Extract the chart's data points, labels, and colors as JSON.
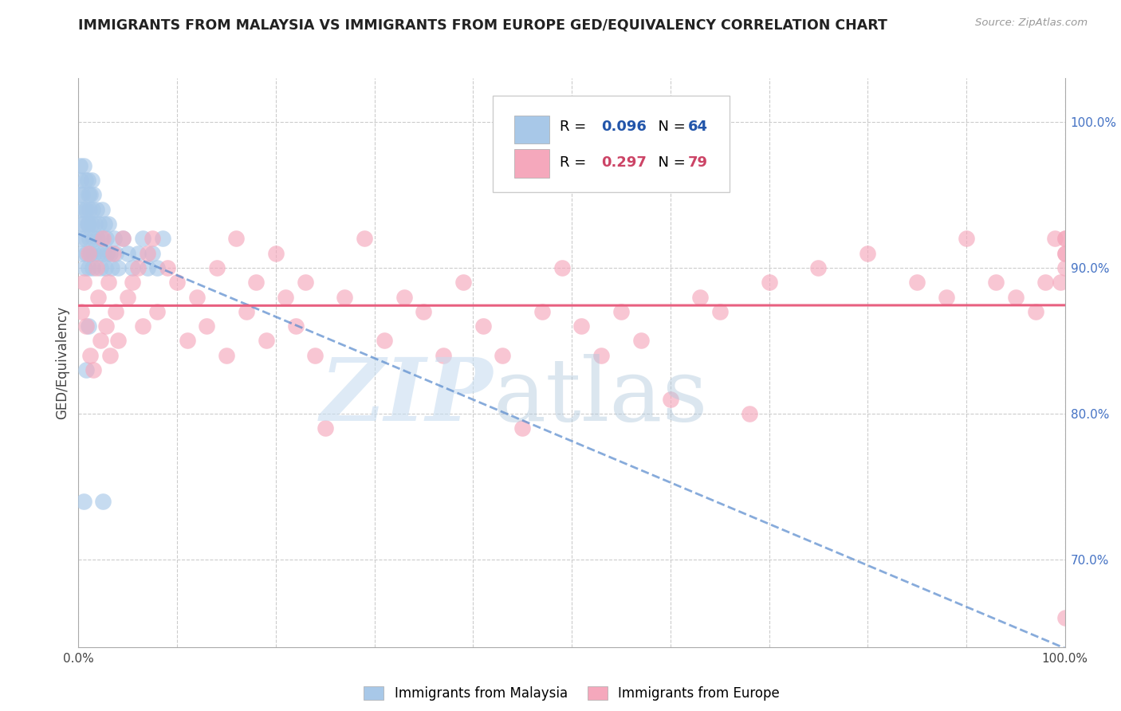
{
  "title": "IMMIGRANTS FROM MALAYSIA VS IMMIGRANTS FROM EUROPE GED/EQUIVALENCY CORRELATION CHART",
  "source": "Source: ZipAtlas.com",
  "ylabel": "GED/Equivalency",
  "xlim": [
    0,
    100
  ],
  "ylim": [
    64,
    103
  ],
  "x_tick_pos": [
    0,
    10,
    20,
    30,
    40,
    50,
    60,
    70,
    80,
    90,
    100
  ],
  "x_tick_labels": [
    "0.0%",
    "",
    "",
    "",
    "",
    "",
    "",
    "",
    "",
    "",
    "100.0%"
  ],
  "y_ticks_right": [
    70,
    80,
    90,
    100
  ],
  "y_tick_labels_right": [
    "70.0%",
    "80.0%",
    "90.0%",
    "100.0%"
  ],
  "malaysia_color": "#a8c8e8",
  "europe_color": "#f5a8bc",
  "malaysia_line_color": "#5588cc",
  "europe_line_color": "#e86080",
  "malaysia_R": 0.096,
  "malaysia_N": 64,
  "europe_R": 0.297,
  "europe_N": 79,
  "legend_R_color": "#2255aa",
  "legend_N_color": "#2255aa",
  "legend_R2_color": "#cc4466",
  "legend_N2_color": "#cc4466",
  "watermark_ZIP_color": "#c8ddf0",
  "watermark_atlas_color": "#b0c8dc",
  "malaysia_x": [
    0.1,
    0.1,
    0.2,
    0.2,
    0.3,
    0.3,
    0.4,
    0.4,
    0.5,
    0.5,
    0.6,
    0.6,
    0.7,
    0.7,
    0.8,
    0.8,
    0.9,
    0.9,
    1.0,
    1.0,
    1.0,
    1.1,
    1.1,
    1.2,
    1.2,
    1.3,
    1.3,
    1.4,
    1.4,
    1.5,
    1.5,
    1.6,
    1.7,
    1.8,
    1.9,
    2.0,
    2.1,
    2.2,
    2.3,
    2.4,
    2.5,
    2.6,
    2.7,
    2.8,
    2.9,
    3.0,
    3.2,
    3.4,
    3.6,
    3.8,
    4.0,
    4.5,
    5.0,
    5.5,
    6.0,
    6.5,
    7.0,
    7.5,
    8.0,
    8.5,
    0.5,
    1.0,
    0.8,
    2.5
  ],
  "malaysia_y": [
    97,
    95,
    96,
    93,
    94,
    92,
    95,
    91,
    93,
    97,
    94,
    90,
    92,
    96,
    91,
    94,
    93,
    96,
    90,
    93,
    95,
    92,
    94,
    91,
    95,
    93,
    96,
    90,
    94,
    92,
    95,
    91,
    93,
    94,
    92,
    91,
    93,
    90,
    92,
    94,
    91,
    93,
    90,
    92,
    91,
    93,
    91,
    90,
    92,
    91,
    90,
    92,
    91,
    90,
    91,
    92,
    90,
    91,
    90,
    92,
    74,
    86,
    83,
    74
  ],
  "europe_x": [
    0.3,
    0.5,
    0.8,
    1.0,
    1.2,
    1.5,
    1.8,
    2.0,
    2.2,
    2.5,
    2.8,
    3.0,
    3.2,
    3.5,
    3.8,
    4.0,
    4.5,
    5.0,
    5.5,
    6.0,
    6.5,
    7.0,
    7.5,
    8.0,
    9.0,
    10.0,
    11.0,
    12.0,
    13.0,
    14.0,
    15.0,
    16.0,
    17.0,
    18.0,
    19.0,
    20.0,
    21.0,
    22.0,
    23.0,
    24.0,
    25.0,
    27.0,
    29.0,
    31.0,
    33.0,
    35.0,
    37.0,
    39.0,
    41.0,
    43.0,
    45.0,
    47.0,
    49.0,
    51.0,
    53.0,
    55.0,
    57.0,
    60.0,
    63.0,
    65.0,
    68.0,
    70.0,
    75.0,
    80.0,
    85.0,
    88.0,
    90.0,
    93.0,
    95.0,
    97.0,
    98.0,
    99.0,
    99.5,
    100.0,
    100.0,
    100.0,
    100.0,
    100.0,
    100.0
  ],
  "europe_y": [
    87,
    89,
    86,
    91,
    84,
    83,
    90,
    88,
    85,
    92,
    86,
    89,
    84,
    91,
    87,
    85,
    92,
    88,
    89,
    90,
    86,
    91,
    92,
    87,
    90,
    89,
    85,
    88,
    86,
    90,
    84,
    92,
    87,
    89,
    85,
    91,
    88,
    86,
    89,
    84,
    79,
    88,
    92,
    85,
    88,
    87,
    84,
    89,
    86,
    84,
    79,
    87,
    90,
    86,
    84,
    87,
    85,
    81,
    88,
    87,
    80,
    89,
    90,
    91,
    89,
    88,
    92,
    89,
    88,
    87,
    89,
    92,
    89,
    91,
    92,
    92,
    91,
    90,
    66
  ]
}
